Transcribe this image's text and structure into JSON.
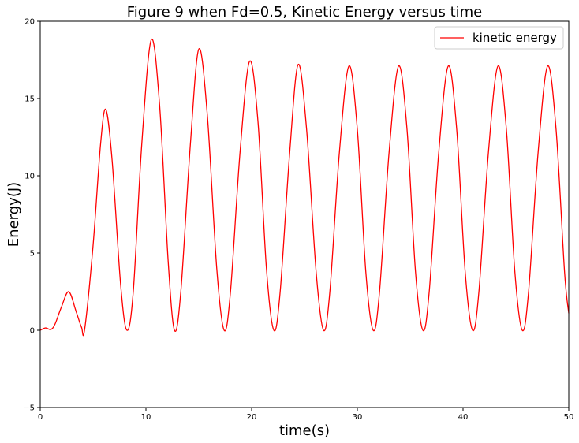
{
  "chart_data": {
    "type": "line",
    "title": "Figure 9 when Fd=0.5, Kinetic Energy versus time",
    "xlabel": "time(s)",
    "ylabel": "Energy(J)",
    "xlim": [
      0,
      50
    ],
    "ylim": [
      -5,
      20
    ],
    "xticks": [
      0,
      10,
      20,
      30,
      40,
      50
    ],
    "yticks": [
      -5,
      0,
      5,
      10,
      15,
      20
    ],
    "grid": false,
    "legend_position": "top-right",
    "series": [
      {
        "name": "kinetic energy",
        "color": "#ff0000",
        "x": [
          0,
          0.5,
          1.0,
          1.4,
          2.0,
          2.7,
          3.4,
          3.9,
          4.2,
          5.0,
          5.7,
          6.2,
          6.8,
          7.6,
          8.2,
          8.8,
          9.6,
          10.5,
          11.3,
          12.1,
          12.7,
          13.3,
          14.2,
          15.0,
          15.8,
          16.7,
          17.4,
          18.0,
          18.9,
          19.8,
          20.6,
          21.4,
          22.1,
          22.7,
          23.6,
          24.4,
          25.2,
          26.1,
          26.8,
          27.4,
          28.3,
          29.2,
          30.0,
          30.8,
          31.5,
          32.1,
          33.0,
          33.9,
          34.7,
          35.5,
          36.2,
          36.8,
          37.7,
          38.6,
          39.4,
          40.2,
          40.9,
          41.5,
          42.4,
          43.3,
          44.1,
          44.9,
          45.6,
          46.2,
          47.1,
          48.0,
          48.8,
          49.6,
          50.0
        ],
        "y": [
          0,
          0.15,
          0.05,
          0.4,
          1.5,
          2.5,
          1.2,
          0.2,
          0.05,
          5.5,
          12.0,
          14.3,
          11.0,
          3.0,
          0.0,
          2.5,
          12.0,
          18.8,
          14.5,
          4.5,
          0.0,
          2.5,
          12.0,
          18.2,
          14.0,
          4.0,
          0.0,
          2.5,
          11.5,
          17.4,
          13.5,
          4.0,
          0.0,
          2.5,
          11.5,
          17.2,
          13.0,
          3.8,
          0.0,
          2.5,
          11.5,
          17.1,
          13.0,
          3.8,
          0.0,
          2.5,
          11.5,
          17.1,
          13.0,
          3.8,
          0.0,
          2.5,
          11.5,
          17.1,
          13.0,
          3.8,
          0.0,
          2.5,
          11.5,
          17.1,
          13.0,
          3.8,
          0.0,
          2.5,
          11.5,
          17.1,
          13.0,
          3.8,
          1.1
        ]
      }
    ]
  }
}
